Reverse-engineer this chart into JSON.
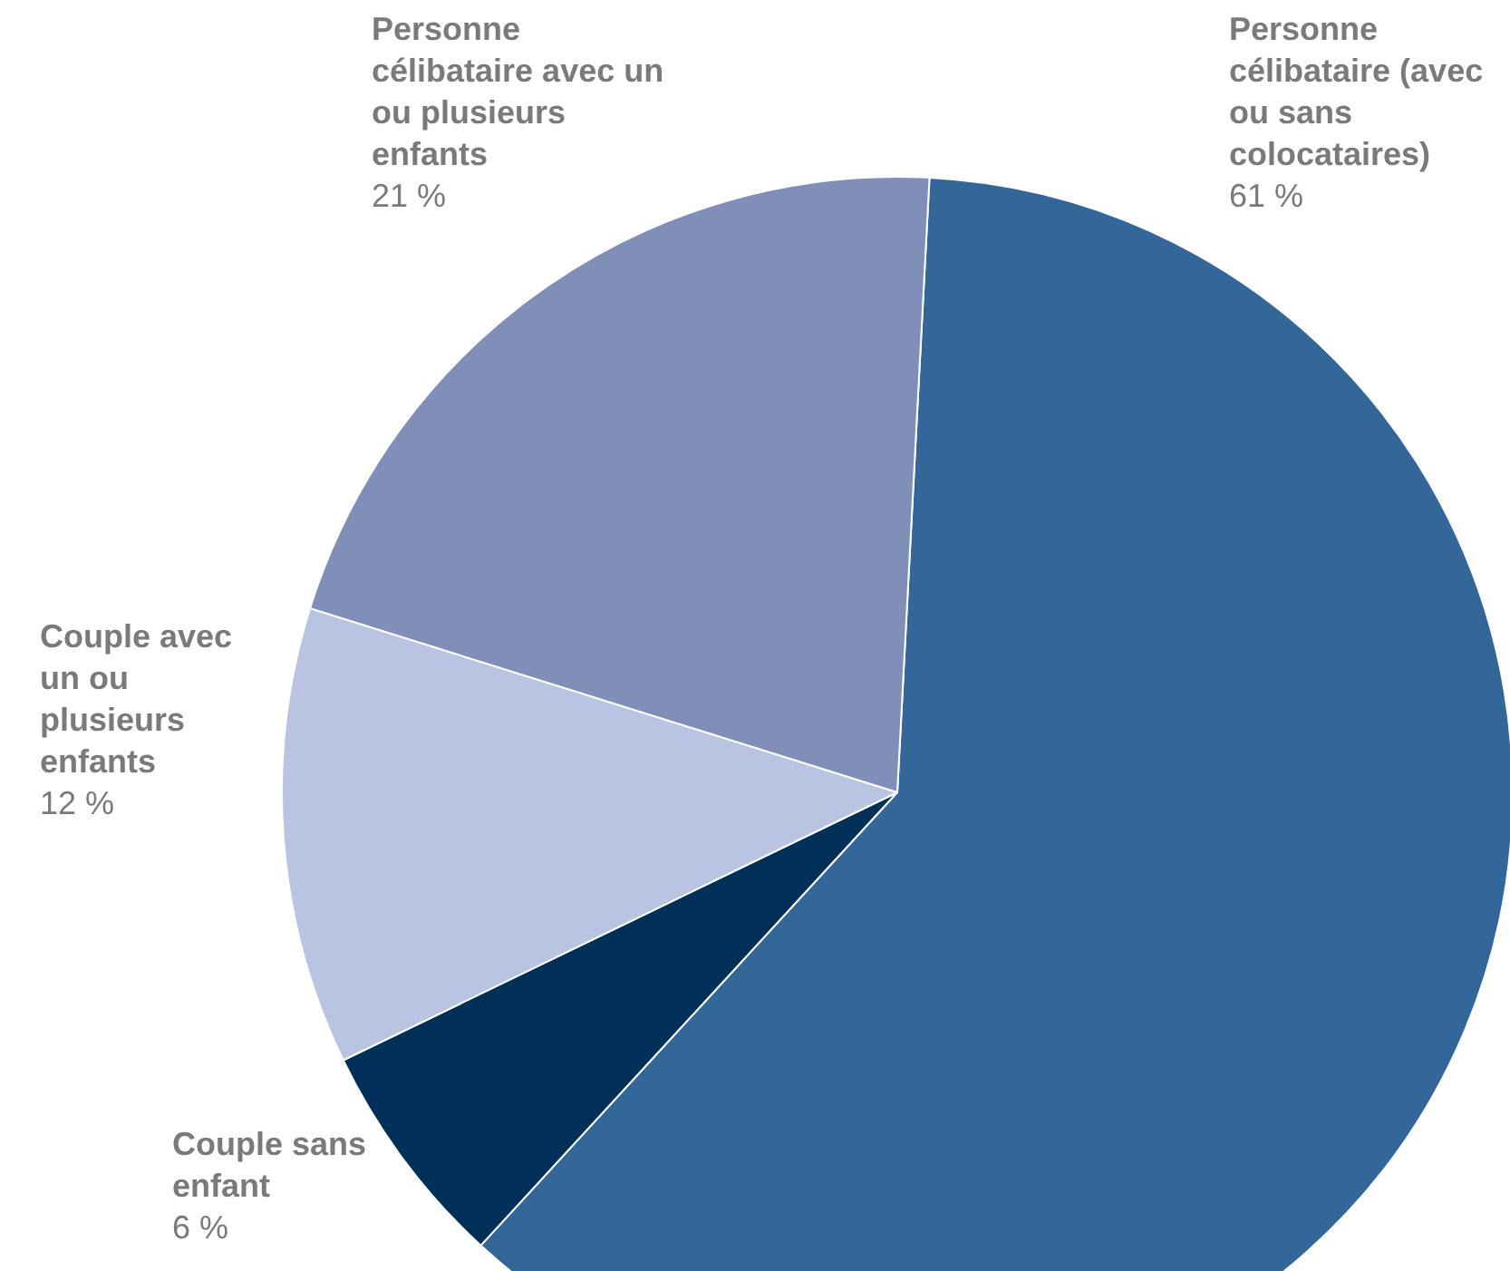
{
  "chart_data": {
    "type": "pie",
    "categories": [
      "Personne célibataire (avec ou sans colocataires)",
      "Couple sans enfant",
      "Couple avec un ou plusieurs enfants",
      "Personne célibataire avec un ou plusieurs enfants"
    ],
    "values": [
      61,
      6,
      12,
      21
    ],
    "value_labels": [
      "61 %",
      "6 %",
      "12 %",
      "21 %"
    ],
    "colors": [
      "#336699",
      "#003057",
      "#b9c4e2",
      "#7f8fb8"
    ],
    "legend": false
  }
}
